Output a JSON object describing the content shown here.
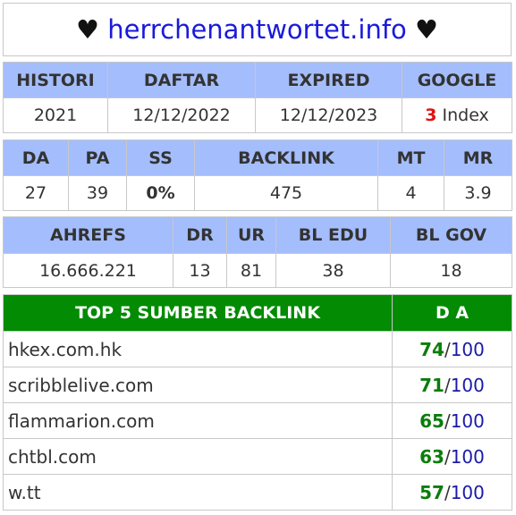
{
  "title": {
    "heart_left": "♥",
    "domain": "herrchenantwortet.info",
    "heart_right": "♥"
  },
  "table1": {
    "headers": [
      "HISTORI",
      "DAFTAR",
      "EXPIRED",
      "GOOGLE"
    ],
    "values": {
      "histori": "2021",
      "daftar": "12/12/2022",
      "expired": "12/12/2023",
      "google_count": "3",
      "google_label": "Index"
    }
  },
  "table2": {
    "headers": [
      "DA",
      "PA",
      "SS",
      "BACKLINK",
      "MT",
      "MR"
    ],
    "values": [
      "27",
      "39",
      "0%",
      "475",
      "4",
      "3.9"
    ]
  },
  "table3": {
    "headers": [
      "AHREFS",
      "DR",
      "UR",
      "BL EDU",
      "BL GOV"
    ],
    "values": [
      "16.666.221",
      "13",
      "81",
      "38",
      "18"
    ]
  },
  "backlinks": {
    "header_source": "TOP 5 SUMBER BACKLINK",
    "header_da": "D A",
    "separator": "/",
    "max": "100",
    "rows": [
      {
        "site": "hkex.com.hk",
        "score": "74"
      },
      {
        "site": "scribblelive.com",
        "score": "71"
      },
      {
        "site": "flammarion.com",
        "score": "65"
      },
      {
        "site": "chtbl.com",
        "score": "63"
      },
      {
        "site": "w.tt",
        "score": "57"
      }
    ]
  },
  "colors": {
    "header_blue": "#a4bdfc",
    "header_green": "#038b03",
    "domain_blue": "#1a1adb",
    "score_green": "#0a7d0a",
    "red": "#e01010",
    "ss_green": "#6fd21e"
  }
}
